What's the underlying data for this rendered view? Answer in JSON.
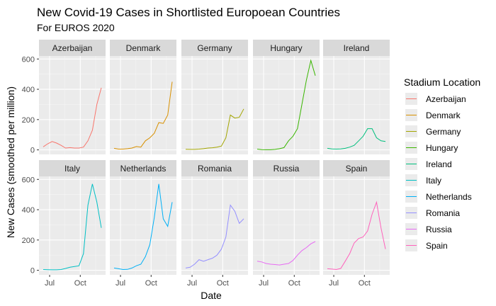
{
  "chart_data": {
    "type": "line",
    "title": "New Covid-19 Cases in Shortlisted Europoean Countries",
    "subtitle": "For EUROS 2020",
    "xlabel": "Date",
    "ylabel": "New Cases (smoothed per million)",
    "x_ticks": [
      "Jul",
      "Oct"
    ],
    "y_ticks": [
      0,
      200,
      400,
      600
    ],
    "ylim": [
      -30,
      620
    ],
    "grid": true,
    "legend": {
      "title": "Stadium Location",
      "placement": "right"
    },
    "facet_layout": {
      "rows": 2,
      "cols": 5
    },
    "x_dates": [
      "Jun 1",
      "Jun 15",
      "Jul 1",
      "Jul 15",
      "Aug 1",
      "Aug 15",
      "Sep 1",
      "Sep 15",
      "Oct 1",
      "Oct 15",
      "Nov 1",
      "Nov 15",
      "Dec 1",
      "Dec 15"
    ],
    "series": [
      {
        "name": "Azerbaijan",
        "color": "#F8766D",
        "values": [
          20,
          40,
          55,
          45,
          30,
          12,
          15,
          12,
          12,
          18,
          60,
          130,
          300,
          410
        ]
      },
      {
        "name": "Denmark",
        "color": "#D89000",
        "values": [
          10,
          5,
          5,
          8,
          12,
          22,
          18,
          60,
          80,
          110,
          180,
          175,
          230,
          450
        ]
      },
      {
        "name": "Germany",
        "color": "#A3A500",
        "values": [
          4,
          3,
          3,
          5,
          8,
          12,
          14,
          18,
          25,
          80,
          230,
          210,
          215,
          270
        ]
      },
      {
        "name": "Hungary",
        "color": "#39B600",
        "values": [
          5,
          2,
          1,
          1,
          3,
          8,
          15,
          60,
          90,
          140,
          300,
          460,
          590,
          490
        ]
      },
      {
        "name": "Ireland",
        "color": "#00BF7D",
        "values": [
          10,
          6,
          5,
          6,
          10,
          18,
          30,
          60,
          90,
          140,
          140,
          80,
          60,
          55
        ]
      },
      {
        "name": "Italy",
        "color": "#00BFC4",
        "values": [
          5,
          4,
          3,
          3,
          5,
          12,
          20,
          25,
          30,
          110,
          430,
          570,
          450,
          280
        ]
      },
      {
        "name": "Netherlands",
        "color": "#00B0F6",
        "values": [
          15,
          10,
          5,
          6,
          15,
          30,
          40,
          90,
          170,
          350,
          570,
          340,
          290,
          450
        ]
      },
      {
        "name": "Romania",
        "color": "#9590FF",
        "values": [
          15,
          20,
          40,
          70,
          60,
          70,
          80,
          100,
          140,
          220,
          430,
          390,
          310,
          340
        ]
      },
      {
        "name": "Russia",
        "color": "#E76BF3",
        "values": [
          60,
          55,
          45,
          40,
          38,
          35,
          40,
          45,
          65,
          100,
          130,
          150,
          175,
          190
        ]
      },
      {
        "name": "Spain",
        "color": "#FF62BC",
        "values": [
          10,
          8,
          5,
          12,
          60,
          110,
          180,
          210,
          220,
          260,
          370,
          450,
          280,
          140
        ]
      }
    ]
  }
}
